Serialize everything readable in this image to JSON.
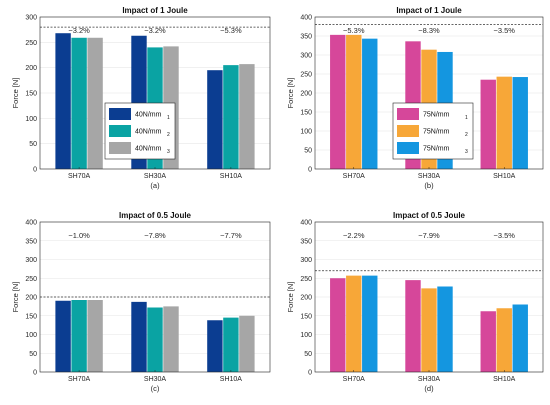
{
  "chart_data": [
    {
      "type": "bar",
      "title": "Impact of 1 Joule",
      "caption": "(a)",
      "ylabel": "Force [N]",
      "ylim": [
        0,
        300
      ],
      "yticks": [
        0,
        50,
        100,
        150,
        200,
        250,
        300
      ],
      "categories": [
        "SH70A",
        "SH30A",
        "SH10A"
      ],
      "reference_line": 280,
      "annotations": [
        "−3.2%",
        "−3.2%",
        "−5.3%"
      ],
      "legend_placement": "center",
      "series": [
        {
          "name": "40N/mm",
          "sub": "1",
          "color": "#0b3d91",
          "values": [
            268,
            263,
            195
          ]
        },
        {
          "name": "40N/mm",
          "sub": "2",
          "color": "#0aa3a3",
          "values": [
            259,
            240,
            205
          ]
        },
        {
          "name": "40N/mm",
          "sub": "3",
          "color": "#a6a6a6",
          "values": [
            259,
            242,
            207
          ]
        }
      ]
    },
    {
      "type": "bar",
      "title": "Impact of 1 Joule",
      "caption": "(b)",
      "ylabel": "Force [N]",
      "ylim": [
        0,
        400
      ],
      "yticks": [
        0,
        50,
        100,
        150,
        200,
        250,
        300,
        350,
        400
      ],
      "categories": [
        "SH70A",
        "SH30A",
        "SH10A"
      ],
      "reference_line": 380,
      "annotations": [
        "−5.3%",
        "−8.3%",
        "−3.5%"
      ],
      "legend_placement": "center",
      "series": [
        {
          "name": "75N/mm",
          "sub": "1",
          "color": "#d6479a",
          "values": [
            353,
            336,
            235
          ]
        },
        {
          "name": "75N/mm",
          "sub": "2",
          "color": "#f7a738",
          "values": [
            353,
            314,
            243
          ]
        },
        {
          "name": "75N/mm",
          "sub": "3",
          "color": "#1496e0",
          "values": [
            343,
            308,
            242
          ]
        }
      ]
    },
    {
      "type": "bar",
      "title": "Impact of 0.5 Joule",
      "caption": "(c)",
      "ylabel": "Force [N]",
      "ylim": [
        0,
        400
      ],
      "yticks": [
        0,
        50,
        100,
        150,
        200,
        250,
        300,
        350,
        400
      ],
      "categories": [
        "SH70A",
        "SH30A",
        "SH10A"
      ],
      "reference_line": 200,
      "annotations": [
        "−1.0%",
        "−7.8%",
        "−7.7%"
      ],
      "series": [
        {
          "name": "40N/mm 1",
          "color": "#0b3d91",
          "values": [
            190,
            187,
            138
          ]
        },
        {
          "name": "40N/mm 2",
          "color": "#0aa3a3",
          "values": [
            192,
            172,
            145
          ]
        },
        {
          "name": "40N/mm 3",
          "color": "#a6a6a6",
          "values": [
            192,
            175,
            150
          ]
        }
      ]
    },
    {
      "type": "bar",
      "title": "Impact of 0.5 Joule",
      "caption": "(d)",
      "ylabel": "Force [N]",
      "ylim": [
        0,
        400
      ],
      "yticks": [
        0,
        50,
        100,
        150,
        200,
        250,
        300,
        350,
        400
      ],
      "categories": [
        "SH70A",
        "SH30A",
        "SH10A"
      ],
      "reference_line": 270,
      "annotations": [
        "−2.2%",
        "−7.9%",
        "−3.5%"
      ],
      "series": [
        {
          "name": "75N/mm 1",
          "color": "#d6479a",
          "values": [
            250,
            245,
            162
          ]
        },
        {
          "name": "75N/mm 2",
          "color": "#f7a738",
          "values": [
            257,
            223,
            170
          ]
        },
        {
          "name": "75N/mm 3",
          "color": "#1496e0",
          "values": [
            257,
            228,
            180
          ]
        }
      ]
    }
  ]
}
